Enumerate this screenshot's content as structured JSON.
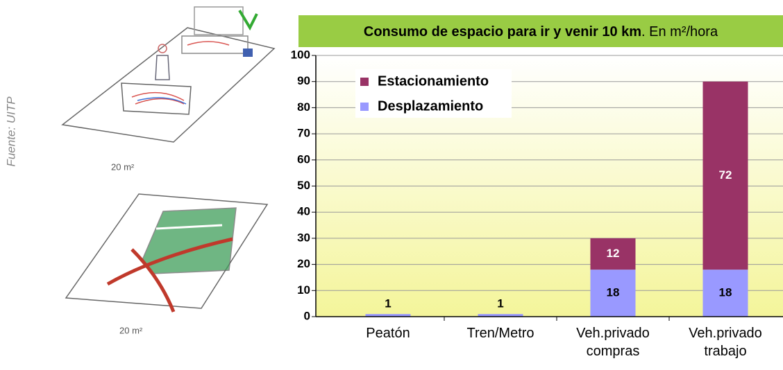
{
  "source": "Fuente: UITP",
  "illustrations": [
    {
      "caption": "20 m²"
    },
    {
      "caption": "20 m²"
    }
  ],
  "chart_data": {
    "type": "stacked-bar",
    "title": "Consumo de espacio para ir y venir 10 km",
    "subtitle": ". En m²/hora",
    "categories": [
      "Peatón",
      "Tren/Metro",
      "Veh.privado compras",
      "Veh.privado trabajo"
    ],
    "series": [
      {
        "name": "Estacionamiento",
        "color": "#993366",
        "values": [
          null,
          null,
          12,
          72
        ]
      },
      {
        "name": "Desplazamiento",
        "color": "#9999ff",
        "values": [
          1,
          1,
          18,
          18
        ]
      }
    ],
    "stack_order": [
      1,
      0
    ],
    "ylim": [
      0,
      100
    ],
    "yticks": [
      0,
      10,
      20,
      30,
      40,
      50,
      60,
      70,
      80,
      90,
      100
    ],
    "grid": true,
    "legend": "top-left"
  }
}
